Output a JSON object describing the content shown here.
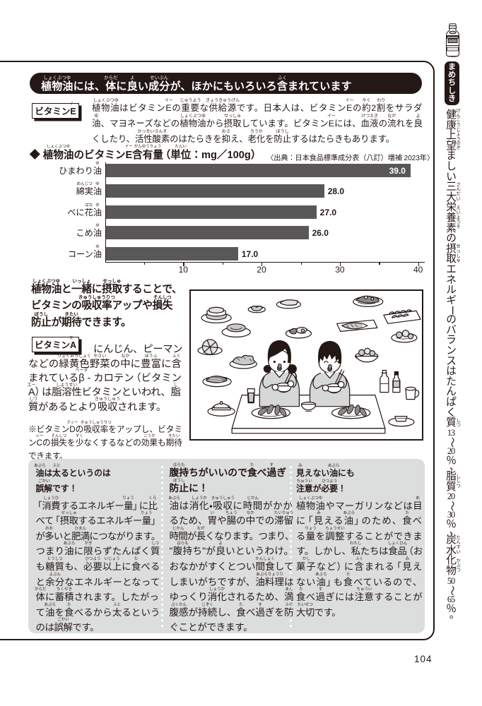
{
  "page": {
    "number": "104",
    "colors": {
      "ink": "#231815",
      "bar_gray": "#595757",
      "panel_gray": "#dcdddd",
      "illustration_gray": "#c9caca"
    }
  },
  "header": {
    "title": [
      [
        "植物油",
        "しょくぶつゆ"
      ],
      [
        "には、"
      ],
      [
        "体",
        "からだ"
      ],
      [
        "に"
      ],
      [
        "良",
        "よ"
      ],
      [
        "い"
      ],
      [
        "成分",
        "せいぶん"
      ],
      [
        "が、ほかにもいろいろ"
      ],
      [
        "含",
        "ふく"
      ],
      [
        "まれています"
      ]
    ]
  },
  "vitamin_e": {
    "label": [
      [
        "ビタミン"
      ],
      [
        "E",
        "イー"
      ]
    ],
    "lines": [
      [
        [
          "植物油",
          "しょくぶつゆ"
        ],
        [
          "はビタミン"
        ],
        [
          "E",
          "イー"
        ],
        [
          "の"
        ],
        [
          "重要",
          "じゅうよう"
        ],
        [
          "な"
        ],
        [
          "供給源",
          "きょうきゅうげん"
        ],
        [
          "です。日本人は、ビタミン"
        ],
        [
          "E",
          "イー"
        ],
        [
          "の"
        ],
        [
          "約",
          "やく"
        ],
        [
          "2"
        ],
        [
          "割",
          "わり"
        ],
        [
          "をサラダ"
        ]
      ],
      [
        [
          "油",
          "ゆ"
        ],
        [
          "、マヨネーズなどの"
        ],
        [
          "植物油",
          "しょくぶつゆ"
        ],
        [
          "から"
        ],
        [
          "摂取",
          "せっしゅ"
        ],
        [
          "しています。ビタミン"
        ],
        [
          "E",
          "イー"
        ],
        [
          "には、"
        ],
        [
          "血液",
          "けつえき"
        ],
        [
          "の"
        ],
        [
          "流",
          "なが"
        ],
        [
          "れを"
        ],
        [
          "良",
          "よ"
        ]
      ],
      [
        [
          "くしたり、"
        ],
        [
          "活性酸素",
          "かっせいさんそ"
        ],
        [
          "のはたらきを"
        ],
        [
          "抑",
          "おさ"
        ],
        [
          "え、"
        ],
        [
          "老化",
          "ろうか"
        ],
        [
          "を"
        ],
        [
          "防止",
          "ぼうし"
        ],
        [
          "するはたらきもあります。"
        ]
      ]
    ]
  },
  "chart": {
    "heading": [
      [
        "◆ "
      ],
      [
        "植物油",
        "しょくぶつゆ"
      ],
      [
        "のビタミン"
      ],
      [
        "E",
        "イー"
      ],
      [
        "含有量",
        "がんゆうりょう"
      ],
      [
        "（"
      ],
      [
        "単位",
        "たんい"
      ],
      [
        "：mg／100g）"
      ]
    ],
    "source": "〈出典：日本食品標準成分表（八訂）増補 2023年〉",
    "chart_data": {
      "type": "bar",
      "orientation": "horizontal",
      "categories": [
        {
          "label": [
            [
              "ひまわり"
            ],
            [
              "油",
              "ゆ"
            ]
          ],
          "value": 39.0,
          "value_label": "39.0"
        },
        {
          "label": [
            [
              "綿実",
              "めんじつ"
            ],
            [
              "油",
              "ゆ"
            ]
          ],
          "value": 28.0,
          "value_label": "28.0"
        },
        {
          "label": [
            [
              "べに"
            ],
            [
              "花",
              "ばな"
            ],
            [
              "油",
              "ゆ"
            ]
          ],
          "value": 27.0,
          "value_label": "27.0"
        },
        {
          "label": [
            [
              "こめ"
            ],
            [
              "油",
              "ゆ"
            ]
          ],
          "value": 26.0,
          "value_label": "26.0"
        },
        {
          "label": [
            [
              "コーン"
            ],
            [
              "油",
              "ゆ"
            ]
          ],
          "value": 17.0,
          "value_label": "17.0"
        }
      ],
      "xlim": [
        0,
        40
      ],
      "major_ticks": [
        10,
        20,
        30,
        40
      ],
      "minor_ticks": [
        5,
        15,
        25,
        35
      ],
      "bar_color": "#595757"
    }
  },
  "statement": {
    "lines": [
      [
        [
          "植物油",
          "しょくぶつゆ"
        ],
        [
          "と"
        ],
        [
          "一緒",
          "いっしょ"
        ],
        [
          "に"
        ],
        [
          "摂取",
          "せっしゅ"
        ],
        [
          "することで、"
        ]
      ],
      [
        [
          "ビタミンの"
        ],
        [
          "吸収率",
          "きゅうしゅうりつ"
        ],
        [
          "アップや"
        ],
        [
          "損失",
          "そんしつ"
        ]
      ],
      [
        [
          "防止",
          "ぼうし"
        ],
        [
          "が"
        ],
        [
          "期待",
          "きたい"
        ],
        [
          "できます。"
        ]
      ]
    ]
  },
  "illustration": {
    "description": "二人の子どもが食卓でたくさんの料理を食べているイラスト"
  },
  "vitamin_a": {
    "label": [
      [
        "ビタミン"
      ],
      [
        "A",
        "エー"
      ]
    ],
    "lines": [
      [
        [
          "にんじん、ピーマン"
        ]
      ],
      [
        [
          "などの"
        ],
        [
          "緑黄色",
          "りょくおうしょく"
        ],
        [
          "野菜",
          "やさい"
        ],
        [
          "の"
        ],
        [
          "中",
          "なか"
        ],
        [
          "に"
        ],
        [
          "豊富",
          "ほうふ"
        ],
        [
          "に"
        ],
        [
          "含",
          "ふく"
        ]
      ],
      [
        [
          "まれている"
        ],
        [
          "β",
          "ベータ"
        ],
        [
          " - カロテン（ビタミン"
        ]
      ],
      [
        [
          "A",
          "エー"
        ],
        [
          "）は"
        ],
        [
          "脂溶性",
          "しようせい"
        ],
        [
          "ビタミンといわれ、"
        ],
        [
          "脂",
          "し"
        ]
      ],
      [
        [
          "質",
          "しつ"
        ],
        [
          "があるとより"
        ],
        [
          "吸収",
          "きゅうしゅう"
        ],
        [
          "されます。"
        ]
      ]
    ]
  },
  "note": {
    "lines": [
      [
        [
          "※ビタミン"
        ],
        [
          "D",
          "ディー"
        ],
        [
          "の"
        ],
        [
          "吸収率",
          "きゅうしゅうりつ"
        ],
        [
          "をアップし、ビタミ"
        ]
      ],
      [
        [
          "ン"
        ],
        [
          "C",
          "シー"
        ],
        [
          "の"
        ],
        [
          "損失",
          "そんしつ"
        ],
        [
          "を"
        ],
        [
          "少",
          "すく"
        ],
        [
          "なくするなどの"
        ],
        [
          "効果",
          "こうか"
        ],
        [
          "も"
        ],
        [
          "期待",
          "きたい"
        ]
      ],
      [
        [
          "できます。"
        ]
      ]
    ]
  },
  "columns": [
    {
      "heading": [
        [
          [
            "油",
            "あぶら"
          ],
          [
            "は"
          ],
          [
            "太",
            "ふと"
          ],
          [
            "るというのは"
          ]
        ],
        [
          [
            "誤解",
            "ごかい"
          ],
          [
            "です！"
          ]
        ]
      ],
      "body": [
        [
          [
            "「"
          ],
          [
            "消費",
            "しょうひ"
          ],
          [
            "するエネルギー"
          ],
          [
            "量",
            "りょう"
          ],
          [
            "」に"
          ],
          [
            "比",
            "くら"
          ]
        ],
        [
          [
            "べて「"
          ],
          [
            "摂取",
            "せっしゅ"
          ],
          [
            "するエネルギー"
          ],
          [
            "量",
            "りょう"
          ],
          [
            "」"
          ]
        ],
        [
          [
            "が"
          ],
          [
            "多",
            "おお"
          ],
          [
            "いと"
          ],
          [
            "肥満",
            "ひまん"
          ],
          [
            "につながります。"
          ]
        ],
        [
          [
            "つまり"
          ],
          [
            "油",
            "あぶら"
          ],
          [
            "に"
          ],
          [
            "限",
            "かぎ"
          ],
          [
            "らずたんぱく"
          ],
          [
            "質",
            "しつ"
          ]
        ],
        [
          [
            "も"
          ],
          [
            "糖質",
            "とうしつ"
          ],
          [
            "も、"
          ],
          [
            "必要",
            "ひつよう"
          ],
          [
            "以上",
            "いじょう"
          ],
          [
            "に"
          ],
          [
            "食",
            "た"
          ],
          [
            "べる"
          ]
        ],
        [
          [
            "と"
          ],
          [
            "余分",
            "よぶん"
          ],
          [
            "なエネルギーとなって"
          ]
        ],
        [
          [
            "体",
            "からだ"
          ],
          [
            "に"
          ],
          [
            "蓄積",
            "ちくせき"
          ],
          [
            "されます。したがっ"
          ]
        ],
        [
          [
            "て"
          ],
          [
            "油",
            "あぶら"
          ],
          [
            "を"
          ],
          [
            "食",
            "た"
          ],
          [
            "べるから"
          ],
          [
            "太",
            "ふと"
          ],
          [
            "るという"
          ]
        ],
        [
          [
            "のは"
          ],
          [
            "誤解",
            "ごかい"
          ],
          [
            "です。"
          ]
        ]
      ]
    },
    {
      "heading": [
        [
          [
            "腹持",
            "はらも"
          ],
          [
            "ちがいいので"
          ],
          [
            "食",
            "た"
          ],
          [
            "べ"
          ],
          [
            "過",
            "す"
          ],
          [
            "ぎ"
          ]
        ],
        [
          [
            "防止",
            "ぼうし"
          ],
          [
            "に！"
          ]
        ]
      ],
      "body": [
        [
          [
            "油",
            "あぶら"
          ],
          [
            "は"
          ],
          [
            "消化",
            "しょうか"
          ],
          [
            "・"
          ],
          [
            "吸収",
            "きゅうしゅう"
          ],
          [
            "に"
          ],
          [
            "時間",
            "じかん"
          ],
          [
            "がかか"
          ]
        ],
        [
          [
            "るため、"
          ],
          [
            "胃",
            "い"
          ],
          [
            "や"
          ],
          [
            "腸",
            "ちょう"
          ],
          [
            "の"
          ],
          [
            "中",
            "なか"
          ],
          [
            "での"
          ],
          [
            "滞留",
            "たいりゅう"
          ]
        ],
        [
          [
            "時間",
            "じかん"
          ],
          [
            "が"
          ],
          [
            "長",
            "なが"
          ],
          [
            "くなります。つまり、"
          ]
        ],
        [
          [
            "\""
          ],
          [
            "腹持",
            "はらも"
          ],
          [
            "ち\"が"
          ],
          [
            "良",
            "よ"
          ],
          [
            "いというわけ。"
          ]
        ],
        [
          [
            "おなかがすくとつい"
          ],
          [
            "間食",
            "かんしょく"
          ],
          [
            "して"
          ]
        ],
        [
          [
            "しまいがちですが、"
          ],
          [
            "油料理",
            "あぶらりょうり"
          ],
          [
            "は"
          ]
        ],
        [
          [
            "ゆっくり"
          ],
          [
            "消化",
            "しょうか"
          ],
          [
            "されるため、"
          ],
          [
            "満",
            "まん"
          ]
        ],
        [
          [
            "腹感",
            "ぷくかん"
          ],
          [
            "が"
          ],
          [
            "持続",
            "じぞく"
          ],
          [
            "し、"
          ],
          [
            "食",
            "た"
          ],
          [
            "べ"
          ],
          [
            "過",
            "す"
          ],
          [
            "ぎを"
          ],
          [
            "防",
            "ふせ"
          ]
        ],
        [
          [
            "ぐことができます。"
          ]
        ]
      ]
    },
    {
      "heading": [
        [
          [
            "見",
            "み"
          ],
          [
            "えない"
          ],
          [
            "油",
            "あぶら"
          ],
          [
            "にも"
          ]
        ],
        [
          [
            "注意",
            "ちゅうい"
          ],
          [
            "が"
          ],
          [
            "必要",
            "ひつよう"
          ],
          [
            "！"
          ]
        ]
      ],
      "body": [
        [
          [
            "植物油",
            "しょくぶつゆ"
          ],
          [
            "やマーガリンなどは"
          ],
          [
            "目",
            "め"
          ]
        ],
        [
          [
            "に「"
          ],
          [
            "見",
            "み"
          ],
          [
            "える"
          ],
          [
            "油",
            "あぶら"
          ],
          [
            "」のため、"
          ],
          [
            "食",
            "た"
          ],
          [
            "べ"
          ]
        ],
        [
          [
            "る"
          ],
          [
            "量",
            "りょう"
          ],
          [
            "を"
          ],
          [
            "調整",
            "ちょうせい"
          ],
          [
            "することができま"
          ]
        ],
        [
          [
            "す。しかし、"
          ],
          [
            "私",
            "わたし"
          ],
          [
            "たちは"
          ],
          [
            "食品",
            "しょくひん"
          ],
          [
            "（お"
          ]
        ],
        [
          [
            "菓子",
            "かし"
          ],
          [
            "など）に"
          ],
          [
            "含",
            "ふく"
          ],
          [
            "まれる「"
          ],
          [
            "見",
            "み"
          ],
          [
            "え"
          ]
        ],
        [
          [
            "ない"
          ],
          [
            "油",
            "あぶら"
          ],
          [
            "」も"
          ],
          [
            "食",
            "た"
          ],
          [
            "べているので、"
          ]
        ],
        [
          [
            "食",
            "た"
          ],
          [
            "べ"
          ],
          [
            "過",
            "す"
          ],
          [
            "ぎには"
          ],
          [
            "注意",
            "ちゅうい"
          ],
          [
            "することが"
          ]
        ],
        [
          [
            "大切",
            "たいせつ"
          ],
          [
            "です。"
          ]
        ]
      ]
    }
  ],
  "sidebar": {
    "badge": "まめちしき",
    "vertical_text": [
      [
        [
          "健康上",
          "けんこうじょう"
        ],
        [
          "望",
          "のぞ"
        ],
        [
          "ましい"
        ],
        [
          "三大",
          "さんだい"
        ],
        [
          "栄養素",
          "えいようそ"
        ],
        [
          "の"
        ],
        [
          "摂取",
          "せっしゅ"
        ],
        [
          "エネルギーのバランスはたんぱく"
        ],
        [
          "質",
          "しつ"
        ],
        [
          "13",
          null,
          "tcy"
        ],
        [
          "～"
        ],
        [
          "20",
          null,
          "tcy"
        ],
        [
          "％、"
        ],
        [
          "脂質",
          "ししつ"
        ],
        [
          "20",
          null,
          "tcy"
        ],
        [
          "～"
        ],
        [
          "30",
          null,
          "tcy"
        ],
        [
          "％、"
        ],
        [
          "炭水",
          "たんすい"
        ],
        [
          "化物",
          "かぶつ"
        ],
        [
          "50",
          null,
          "tcy"
        ],
        [
          "～"
        ],
        [
          "65",
          null,
          "tcy"
        ],
        [
          "％。"
        ]
      ]
    ]
  }
}
